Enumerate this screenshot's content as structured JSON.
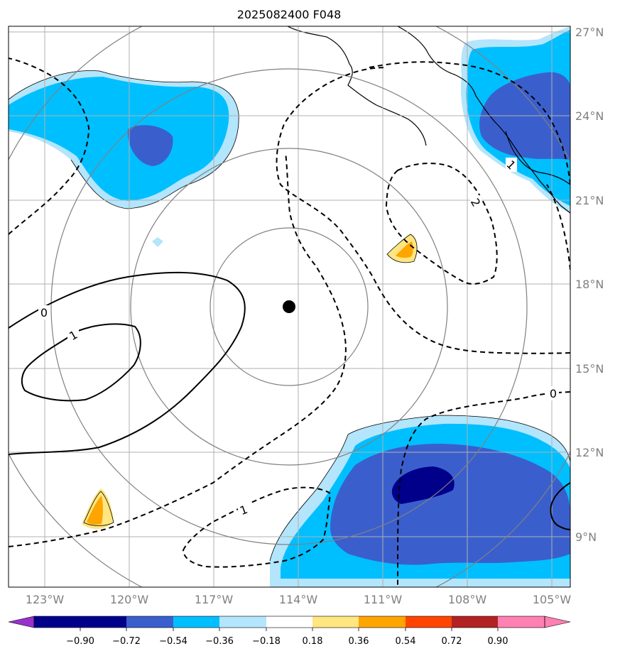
{
  "title": "2025082400 F048",
  "map": {
    "lon_labels": [
      "123°W",
      "120°W",
      "117°W",
      "114°W",
      "111°W",
      "108°W",
      "105°W"
    ],
    "lat_labels": [
      "27°N",
      "24°N",
      "21°N",
      "18°N",
      "15°N",
      "12°N",
      "9°N"
    ],
    "center_marker": {
      "lon": "114°W",
      "lat": "17.2°N"
    },
    "contour_labels": {
      "zero_west": "0",
      "one_west": "1",
      "neg_two": "2",
      "neg_one_east": "1",
      "neg_one_south": "1",
      "zero_east": "0"
    }
  },
  "colorbar": {
    "tick_labels": [
      "−0.90",
      "−0.72",
      "−0.54",
      "−0.36",
      "−0.18",
      "0.18",
      "0.36",
      "0.54",
      "0.72",
      "0.90"
    ],
    "colors": [
      "#9932cc",
      "#00008b",
      "#3a5fcd",
      "#00bfff",
      "#b3e5fc",
      "#ffffff",
      "#ffe680",
      "#ffa500",
      "#ff4500",
      "#b22222",
      "#ff80b3"
    ]
  }
}
